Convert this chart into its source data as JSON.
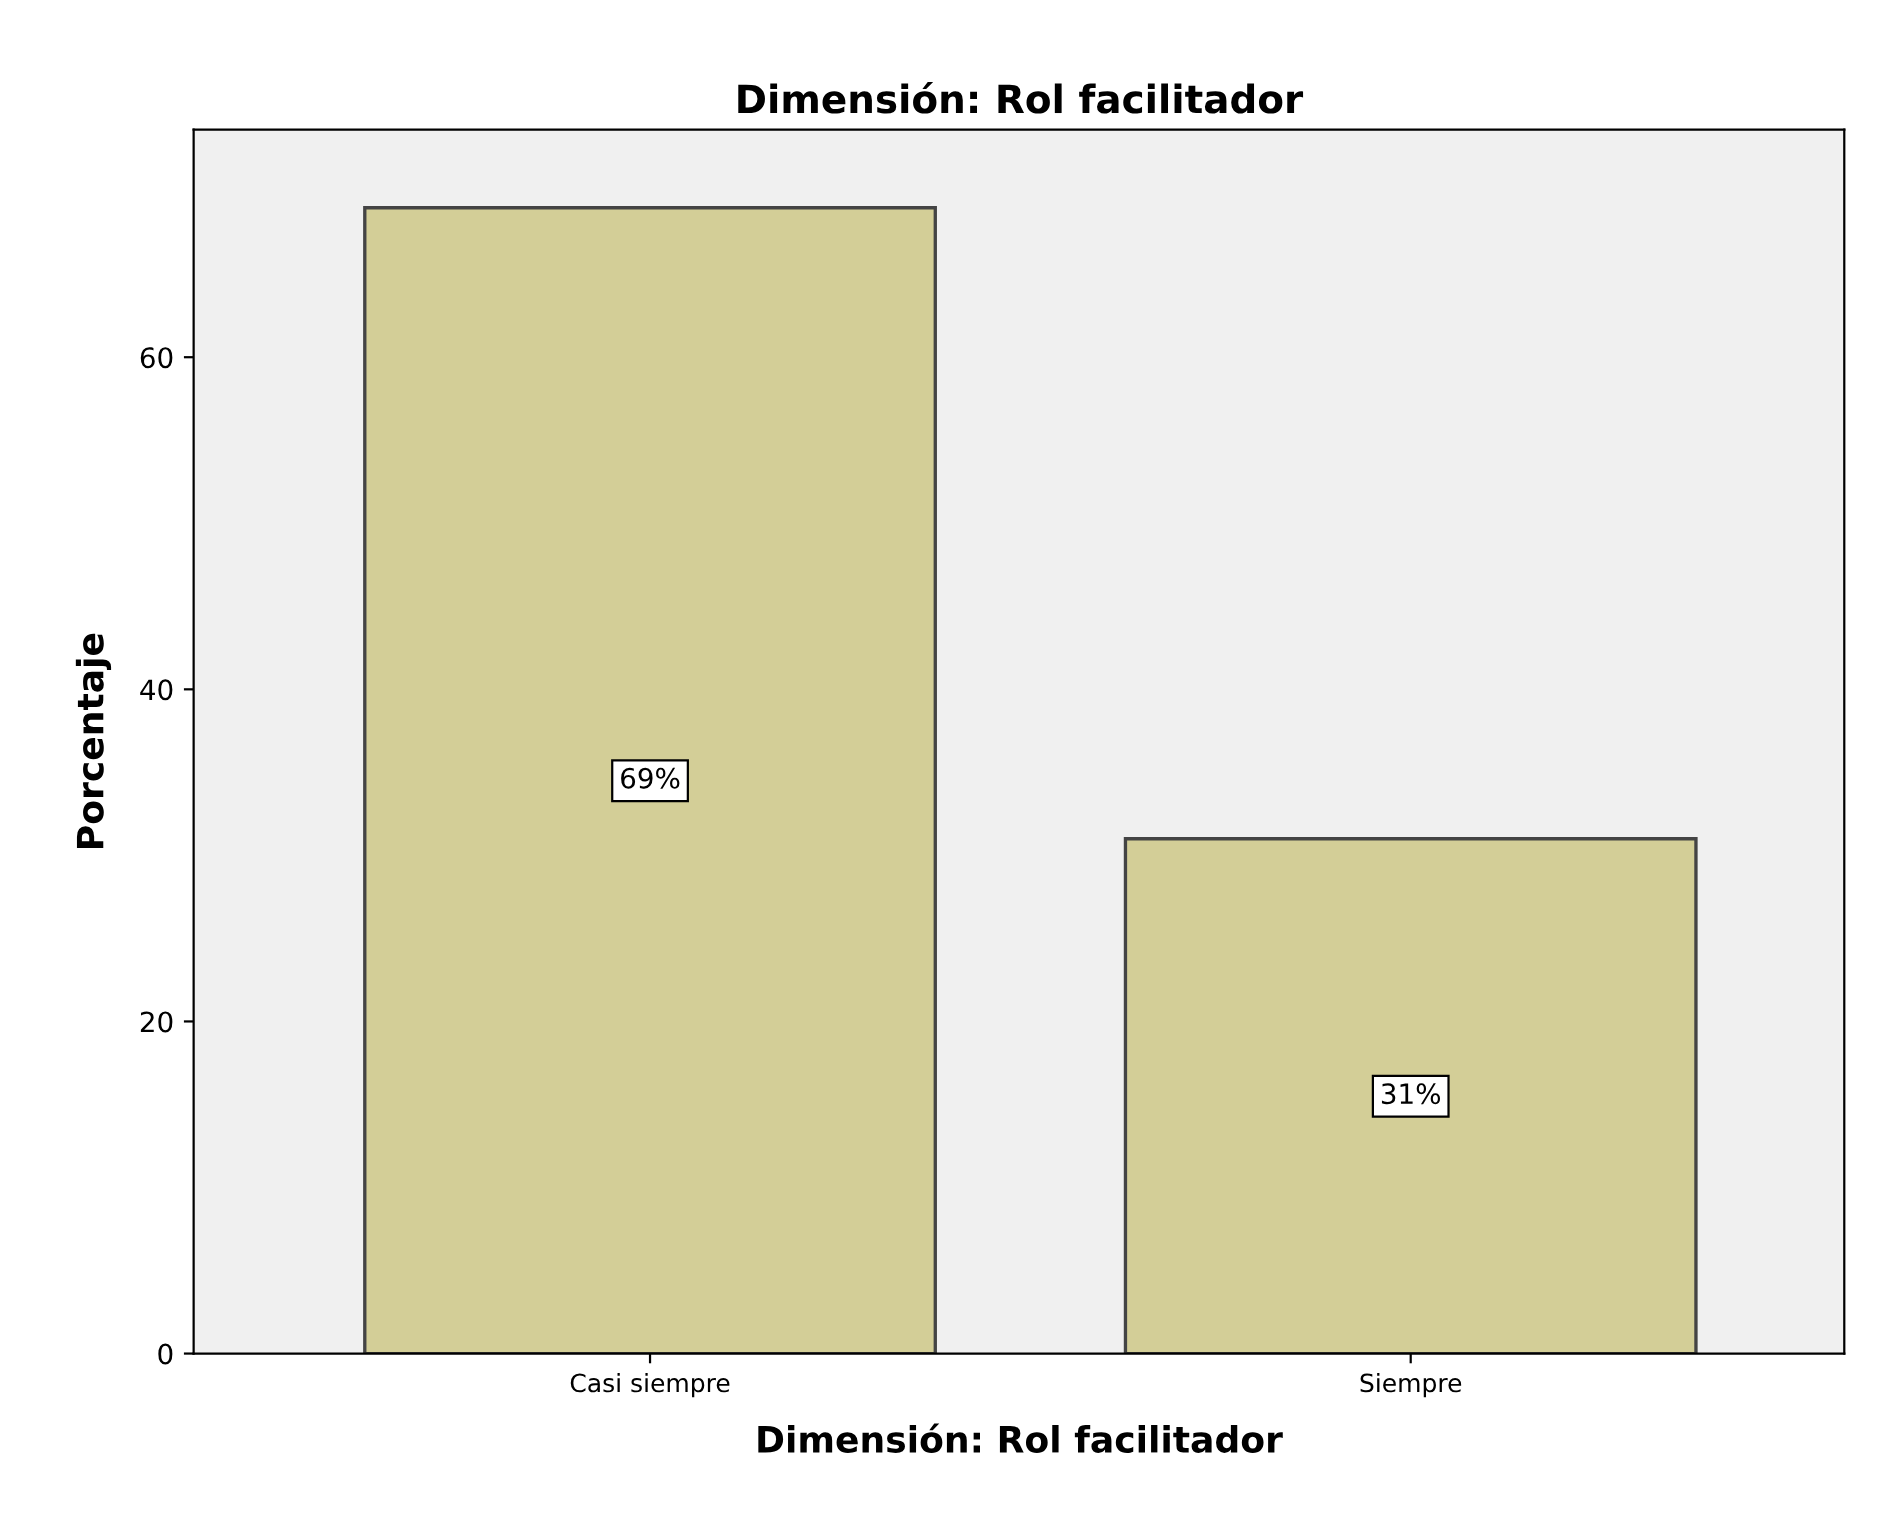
{
  "chart_data": {
    "type": "bar",
    "title": "Dimensión: Rol facilitador",
    "xlabel": "Dimensión: Rol facilitador",
    "ylabel": "Porcentaje",
    "categories": [
      "Casi siempre",
      "Siempre"
    ],
    "values": [
      69,
      31
    ],
    "value_labels": [
      "69%",
      "31%"
    ],
    "color": "#d3ce97",
    "ylim": [
      0,
      73.7
    ],
    "yticks": [
      0,
      20,
      40,
      60
    ],
    "grid": false,
    "legend": false
  }
}
